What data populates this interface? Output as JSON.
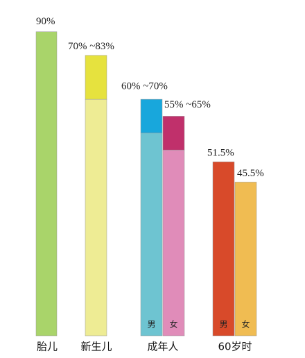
{
  "chart_data": {
    "type": "range_bar",
    "groups": [
      {
        "label": "胎儿",
        "bars": [
          {
            "value": 90,
            "value_label": "90%",
            "color": "#a9d46a"
          }
        ]
      },
      {
        "label": "新生儿",
        "bars": [
          {
            "low": 70,
            "high": 83,
            "value_label": "70% ~83%",
            "color": "#eeec94",
            "range_color": "#e6e23e"
          }
        ]
      },
      {
        "label": "成年人",
        "bars": [
          {
            "name": "男",
            "low": 60,
            "high": 70,
            "value_label": "60% ~70%",
            "color": "#6ec4d1",
            "range_color": "#18a7dc"
          },
          {
            "name": "女",
            "low": 55,
            "high": 65,
            "value_label": "55% ~65%",
            "color": "#e08cb9",
            "range_color": "#c0306b"
          }
        ]
      },
      {
        "label": "60岁时",
        "bars": [
          {
            "name": "男",
            "value": 51.5,
            "value_label": "51.5%",
            "color": "#d84a2a"
          },
          {
            "name": "女",
            "value": 45.5,
            "value_label": "45.5%",
            "color": "#f0bc52"
          }
        ]
      }
    ]
  }
}
